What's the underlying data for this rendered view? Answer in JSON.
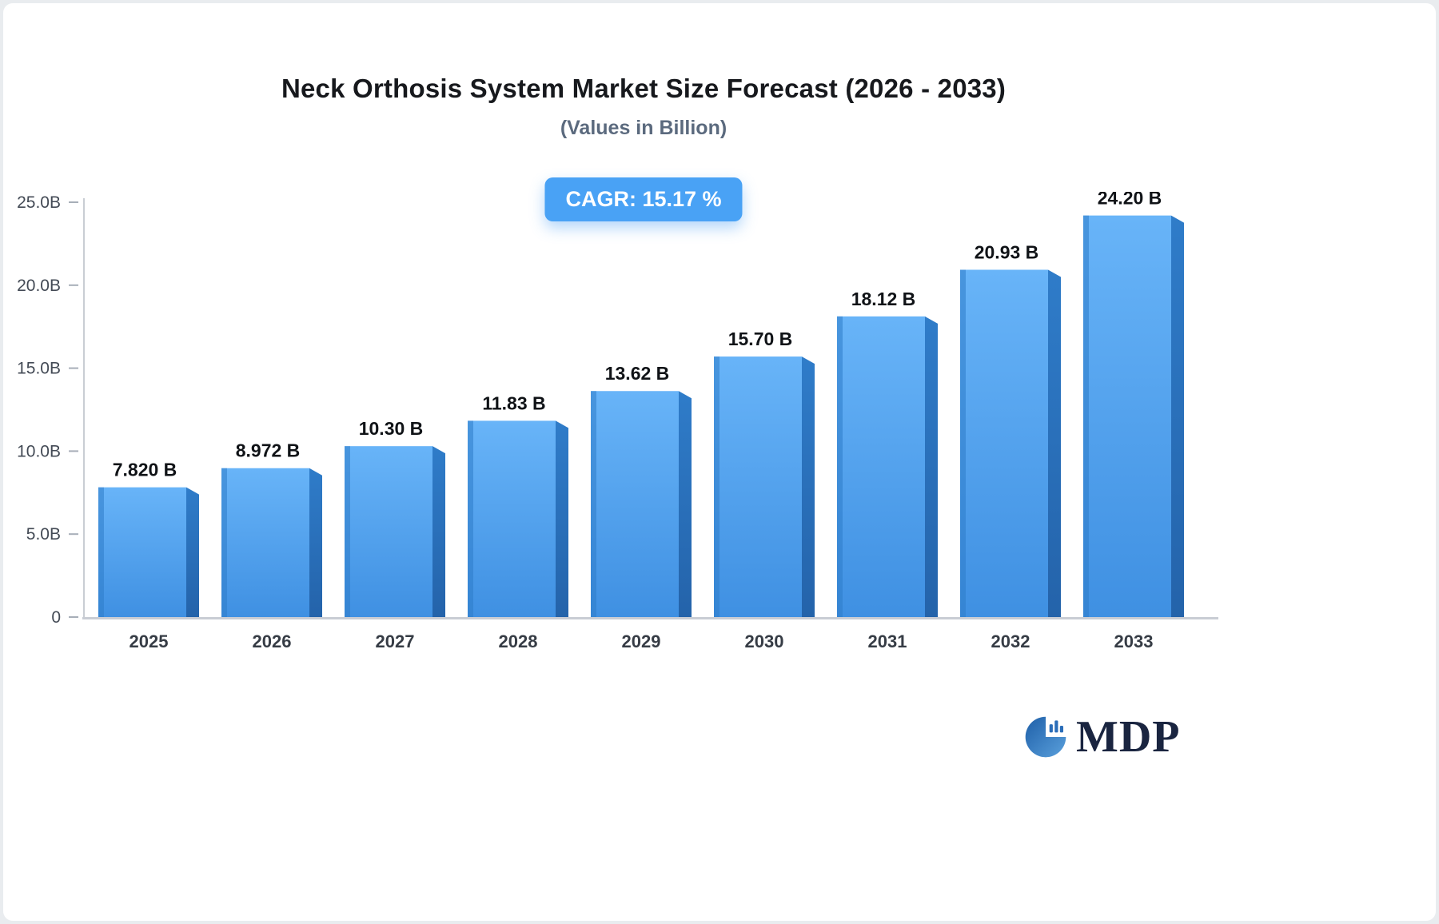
{
  "page": {
    "background": "#ffffff",
    "accent_blue": "#49a2f5"
  },
  "header": {
    "title": "Neck Orthosis System Market Size Forecast (2026 - 2033)",
    "subtitle": "(Values in Billion)"
  },
  "badge": {
    "cagr_label": "CAGR: 15.17 %"
  },
  "chart_data": {
    "type": "bar",
    "title": "Neck Orthosis System Market Size Forecast (2026 - 2033)",
    "subtitle": "(Values in Billion)",
    "categories": [
      "2025",
      "2026",
      "2027",
      "2028",
      "2029",
      "2030",
      "2031",
      "2032",
      "2033"
    ],
    "values": [
      7.82,
      8.972,
      10.3,
      11.83,
      13.62,
      15.7,
      18.12,
      20.93,
      24.2
    ],
    "value_labels": [
      "7.820 B",
      "8.972 B",
      "10.30 B",
      "11.83 B",
      "13.62 B",
      "15.70 B",
      "18.12 B",
      "20.93 B",
      "24.20 B"
    ],
    "xlabel": "",
    "ylabel": "",
    "ylim": [
      0,
      25
    ],
    "yticks": [
      0,
      5,
      10,
      15,
      20,
      25
    ],
    "ytick_labels": [
      "0",
      "5.0B",
      "10.0B",
      "15.0B",
      "20.0B",
      "25.0B"
    ],
    "grid": false,
    "legend": "none",
    "annotation": "CAGR: 15.17 %",
    "bar_front_top_color": "#68b4f8",
    "bar_front_bottom_color": "#3f90e2",
    "bar_left_edge_color": "#2e7cc9",
    "bar_side_top_color": "#2f7cc9",
    "bar_side_bottom_color": "#2463aa",
    "axis_color": "#c9cdd4",
    "tick_color": "#a7aeb8",
    "ytick_text_color": "#434a55",
    "xtick_text_color": "#363c45",
    "value_label_color": "#101317"
  },
  "logo": {
    "text": "MDP"
  }
}
